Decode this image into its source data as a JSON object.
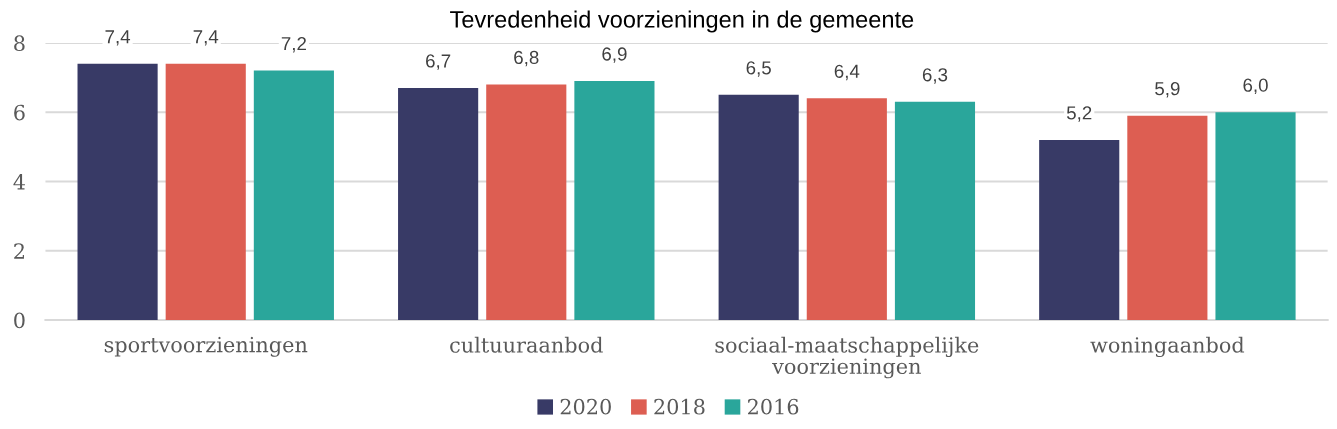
{
  "chart_data": {
    "type": "bar",
    "title": "Tevredenheid voorzieningen in de gemeente",
    "categories": [
      "sportvoorzieningen",
      "cultuuraanbod",
      "sociaal-maatschappelijke voorzieningen",
      "woningaanbod"
    ],
    "series": [
      {
        "name": "2020",
        "color": "#383a66",
        "values": [
          7.4,
          6.7,
          6.5,
          5.2
        ],
        "value_labels": [
          "7,4",
          "6,7",
          "6,5",
          "5,2"
        ]
      },
      {
        "name": "2018",
        "color": "#dd5e52",
        "values": [
          7.4,
          6.8,
          6.4,
          5.9
        ],
        "value_labels": [
          "7,4",
          "6,8",
          "6,4",
          "5,9"
        ]
      },
      {
        "name": "2016",
        "color": "#2aa69b",
        "values": [
          7.2,
          6.9,
          6.3,
          6.0
        ],
        "value_labels": [
          "7,2",
          "6,9",
          "6,3",
          "6,0"
        ]
      }
    ],
    "ylim": [
      0,
      8
    ],
    "yticks": [
      0,
      2,
      4,
      6,
      8
    ],
    "grid": "y",
    "legend": "bottom"
  }
}
